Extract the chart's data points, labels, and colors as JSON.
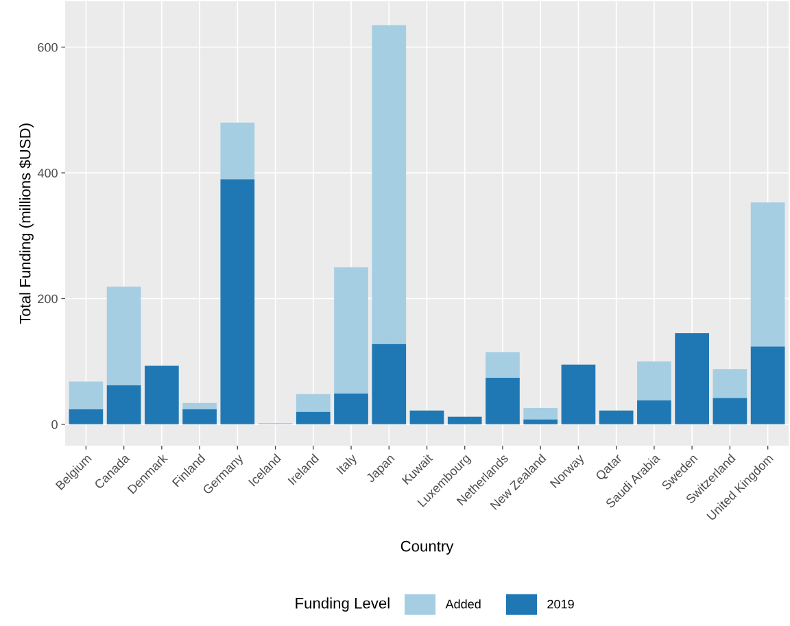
{
  "chart_data": {
    "type": "bar",
    "xlabel": "Country",
    "ylabel": "Total Funding (millions $USD)",
    "legend_title": "Funding Level",
    "categories": [
      "Belgium",
      "Canada",
      "Denmark",
      "Finland",
      "Germany",
      "Iceland",
      "Ireland",
      "Italy",
      "Japan",
      "Kuwait",
      "Luxembourg",
      "Netherlands",
      "New Zealand",
      "Norway",
      "Qatar",
      "Saudi Arabia",
      "Sweden",
      "Switzerland",
      "United Kingdom"
    ],
    "stacked": true,
    "series": [
      {
        "name": "2019",
        "color": "#1f78b4",
        "values": [
          24,
          62,
          93,
          24,
          390,
          0,
          20,
          49,
          128,
          22,
          12,
          74,
          8,
          95,
          22,
          38,
          145,
          42,
          124
        ]
      },
      {
        "name": "Added",
        "color": "#a6cee3",
        "values": [
          44,
          157,
          0,
          10,
          90,
          2,
          28,
          201,
          507,
          0,
          0,
          41,
          18,
          0,
          0,
          62,
          0,
          46,
          229
        ]
      }
    ],
    "ylim": [
      -34,
      673
    ],
    "yticks": [
      0,
      200,
      400,
      600
    ],
    "grid": true,
    "legend": "bottom"
  }
}
